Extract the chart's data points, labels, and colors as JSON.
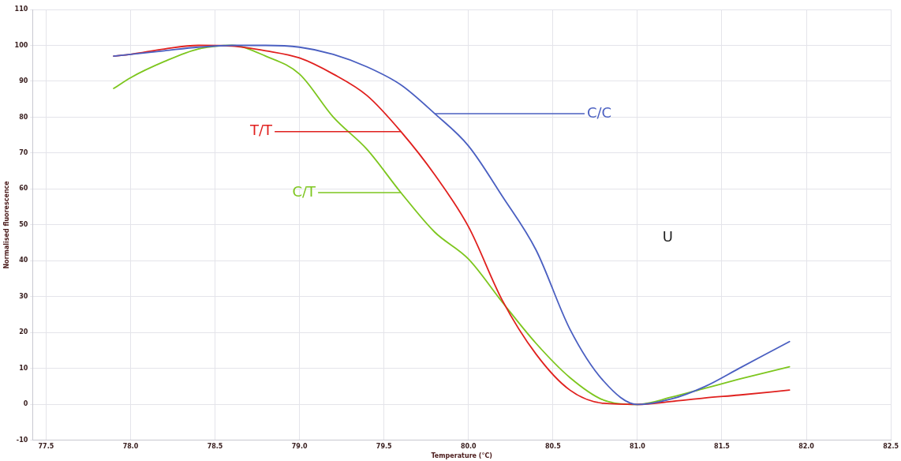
{
  "chart_data": {
    "type": "line",
    "xlabel": "Temperature (°C)",
    "ylabel": "Normalised fluorescence",
    "xlim": [
      77.42,
      82.5
    ],
    "xticks": [
      77.5,
      {
        "value": 78,
        "label": "78.0"
      },
      78.5,
      {
        "value": 79,
        "label": "79.0"
      },
      79.5,
      {
        "value": 80,
        "label": "80.0"
      },
      80.5,
      {
        "value": 81,
        "label": "81.0"
      },
      81.5,
      {
        "value": 82,
        "label": "82.0"
      },
      82.5
    ],
    "ylim": [
      -10,
      110
    ],
    "yticks": [
      -10,
      0,
      10,
      20,
      30,
      40,
      50,
      60,
      70,
      80,
      90,
      100,
      110
    ],
    "grid": true,
    "legend": false,
    "marker": "none",
    "line_style": "solid",
    "x": [
      77.9,
      78.0,
      78.2,
      78.4,
      78.6,
      78.8,
      79.0,
      79.2,
      79.4,
      79.6,
      79.8,
      80.0,
      80.2,
      80.4,
      80.6,
      80.8,
      81.0,
      81.2,
      81.4,
      81.6,
      81.9
    ],
    "series": [
      {
        "name": "C/C",
        "color": "#4a5fc1",
        "values": [
          97,
          97.5,
          98.5,
          99.5,
          100,
          100,
          99.5,
          97.5,
          94,
          89,
          81,
          72,
          58,
          43,
          21,
          6.5,
          0,
          1.5,
          5,
          10,
          17.5
        ]
      },
      {
        "name": "T/T",
        "color": "#e0201e",
        "values": [
          97,
          97.5,
          99,
          100,
          99.8,
          98.5,
          96.5,
          92,
          86,
          76,
          64,
          49.5,
          29,
          14,
          4,
          0.3,
          0,
          0.8,
          1.8,
          2.6,
          4
        ]
      },
      {
        "name": "C/T",
        "color": "#7dc61e",
        "values": [
          88,
          91,
          95.5,
          99,
          100,
          97,
          92,
          80,
          71,
          59,
          48,
          40.5,
          28.5,
          17,
          7.5,
          1.2,
          0,
          2,
          4.5,
          7,
          10.5
        ]
      }
    ],
    "annotations": [
      "U"
    ]
  }
}
